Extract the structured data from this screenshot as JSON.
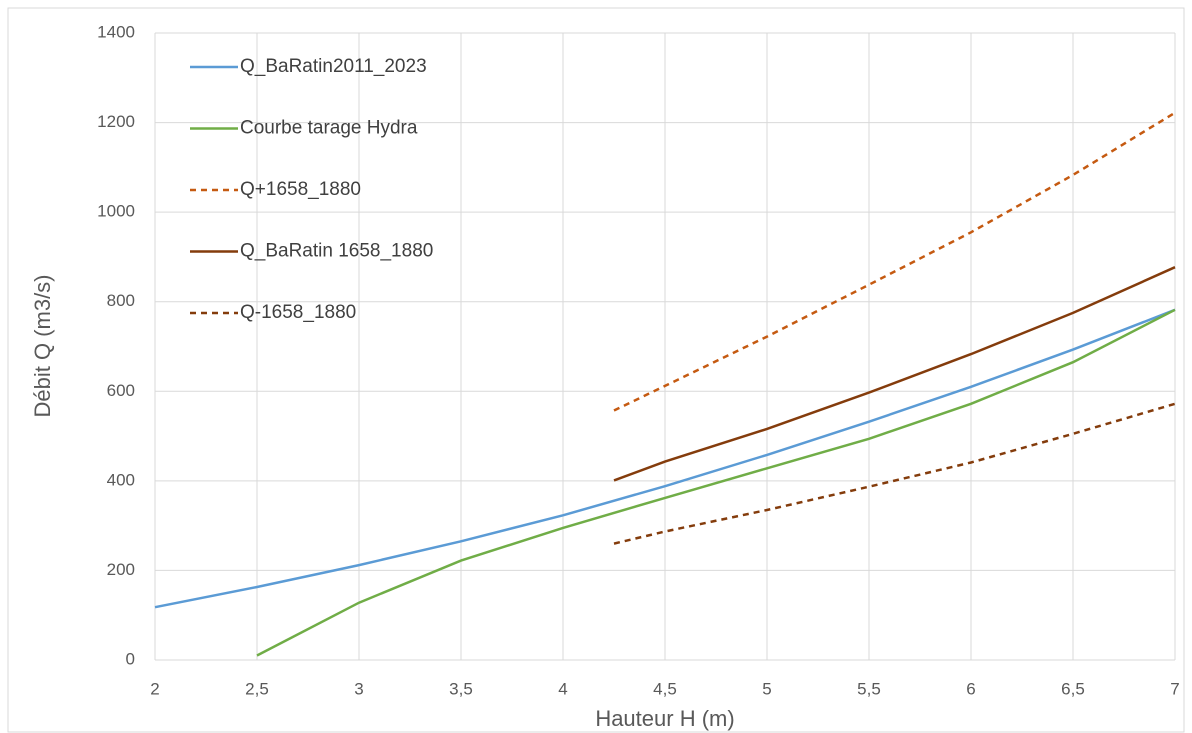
{
  "chart_data": {
    "type": "line",
    "xlabel": "Hauteur H (m)",
    "ylabel": "Débit Q (m3/s)",
    "xlim": [
      2,
      7
    ],
    "ylim": [
      0,
      1400
    ],
    "xticks": [
      2,
      {
        "value": 2.5,
        "label": "2,5"
      },
      3,
      {
        "value": 3.5,
        "label": "3,5"
      },
      4,
      {
        "value": 4.5,
        "label": "4,5"
      },
      5,
      {
        "value": 5.5,
        "label": "5,5"
      },
      6,
      {
        "value": 6.5,
        "label": "6,5"
      },
      7
    ],
    "yticks": [
      0,
      200,
      400,
      600,
      800,
      1000,
      1200,
      1400
    ],
    "grid": true,
    "legend": "upper left",
    "series": [
      {
        "name": "Q_BaRatin2011_2023",
        "color": "#5b9bd5",
        "dashed": false,
        "x": [
          2,
          2.5,
          3,
          3.5,
          4,
          4.5,
          5,
          5.5,
          6,
          6.5,
          7
        ],
        "values": [
          118,
          163,
          212,
          265,
          323,
          388,
          458,
          532,
          610,
          693,
          782
        ]
      },
      {
        "name": "Courbe tarage Hydra",
        "color": "#70ad47",
        "dashed": false,
        "x": [
          2.5,
          3,
          3.5,
          4,
          4.5,
          5,
          5.5,
          6,
          6.5,
          7
        ],
        "values": [
          10,
          128,
          222,
          295,
          362,
          428,
          494,
          572,
          665,
          782
        ]
      },
      {
        "name": "Q+1658_1880",
        "color": "#c55a11",
        "dashed": true,
        "x": [
          4.25,
          4.5,
          5,
          5.5,
          6,
          6.5,
          7
        ],
        "values": [
          557,
          612,
          722,
          838,
          955,
          1083,
          1222
        ]
      },
      {
        "name": "Q_BaRatin 1658_1880",
        "color": "#843c0c",
        "dashed": false,
        "x": [
          4.25,
          4.5,
          5,
          5.5,
          6,
          6.5,
          7
        ],
        "values": [
          401,
          443,
          516,
          597,
          683,
          775,
          877
        ]
      },
      {
        "name": "Q-1658_1880",
        "color": "#843c0c",
        "dashed": true,
        "x": [
          4.25,
          4.5,
          5,
          5.5,
          6,
          6.5,
          7
        ],
        "values": [
          260,
          287,
          335,
          387,
          441,
          505,
          572
        ]
      }
    ]
  }
}
